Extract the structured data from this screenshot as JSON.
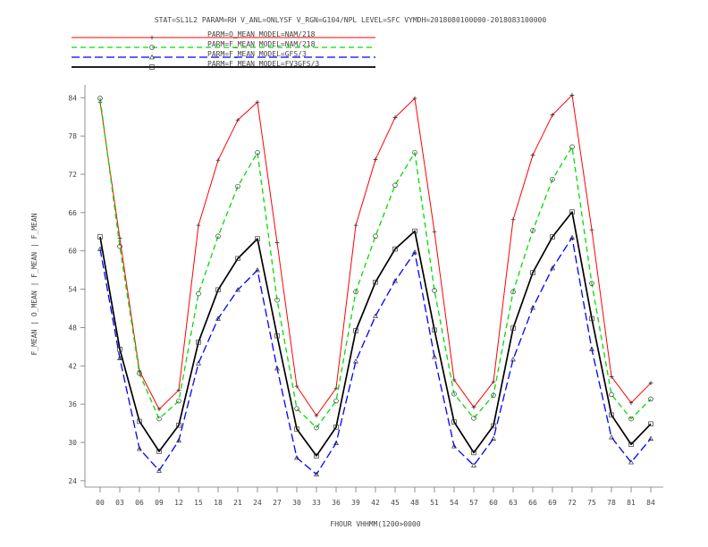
{
  "chart_data": {
    "type": "line",
    "title": "STAT=SL1L2 PARAM=RH V_ANL=ONLYSF V_RGN=G104/NPL LEVEL=SFC VYMDH=2018080100000-2018083100000",
    "xlabel": "FHOUR VHHMM(1200>0000",
    "ylabel": "F_MEAN | O_MEAN | F_MEAN | F_MEAN",
    "x": [
      "00",
      "03",
      "06",
      "09",
      "12",
      "15",
      "18",
      "21",
      "24",
      "27",
      "30",
      "33",
      "36",
      "39",
      "42",
      "45",
      "48",
      "51",
      "54",
      "57",
      "60",
      "63",
      "66",
      "69",
      "72",
      "75",
      "78",
      "81",
      "84"
    ],
    "yticks": [
      "84",
      "78",
      "72",
      "66",
      "60",
      "54",
      "48",
      "42",
      "36",
      "30",
      "24"
    ],
    "ylim": [
      23,
      86
    ],
    "grid": false,
    "legend_position": "top-left",
    "series": [
      {
        "name": "PARM=O_MEAN MODEL=NAM/218",
        "color": "#ff0000",
        "style": "solid",
        "marker": "plus",
        "values": [
          83.3,
          62,
          41.2,
          35.2,
          38.2,
          64,
          74.2,
          80.5,
          83.3,
          61.3,
          38.8,
          34.2,
          38.5,
          64,
          74.3,
          80.9,
          83.9,
          63,
          39.8,
          35.5,
          39.5,
          64.9,
          75,
          81.3,
          84.4,
          63.3,
          40.3,
          36.2,
          39.3
        ]
      },
      {
        "name": "PARM=F_MEAN MODEL=NAM/218",
        "color": "#00dd00",
        "style": "dashed",
        "marker": "circle",
        "values": [
          83.9,
          60.7,
          40.8,
          33.7,
          36.5,
          53.3,
          62.3,
          70.1,
          75.4,
          52.3,
          35.3,
          32.3,
          36.5,
          53.6,
          62.3,
          70.3,
          75.4,
          53.8,
          37.6,
          33.8,
          37.4,
          53.6,
          63.2,
          71.2,
          76.3,
          54.9,
          37.5,
          33.7,
          36.8
        ]
      },
      {
        "name": "PARM=F_MEAN MODEL=GFS/3",
        "color": "#0000ff",
        "style": "dashed",
        "marker": "triangle",
        "values": [
          60.3,
          43.2,
          29,
          25.6,
          30.3,
          42.4,
          49.4,
          53.9,
          57,
          41.6,
          27.6,
          25,
          29.9,
          42.7,
          49.8,
          55.3,
          59.8,
          43.4,
          29.4,
          26.4,
          30.6,
          43,
          51.1,
          57.3,
          62.1,
          44.6,
          30.8,
          26.9,
          30.6
        ]
      },
      {
        "name": "PARM=F_MEAN MODEL=FV3GFS/3",
        "color": "#000000",
        "style": "solid",
        "marker": "square",
        "values": [
          62.2,
          44.6,
          33.3,
          28.6,
          32.7,
          45.7,
          53.9,
          58.8,
          61.9,
          46.7,
          32.1,
          27.9,
          32.4,
          47.5,
          55.1,
          60.3,
          63.1,
          47.6,
          33.2,
          28.4,
          32.6,
          47.9,
          56.6,
          62.2,
          66.1,
          49.4,
          34.3,
          29.7,
          32.9
        ]
      }
    ]
  }
}
